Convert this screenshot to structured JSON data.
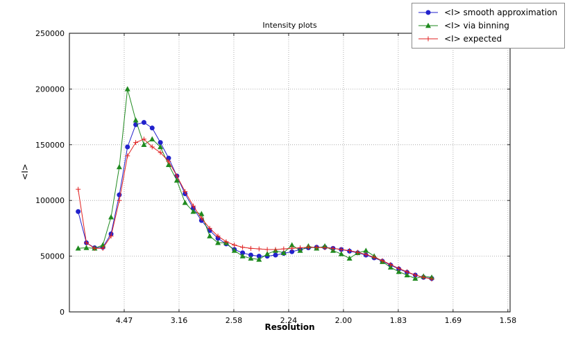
{
  "title": "Intensity plots",
  "xlabel": "Resolution",
  "ylabel": "<I>",
  "colors": {
    "smooth": "#2222cc",
    "binning": "#1f8a1f",
    "expected": "#e02020",
    "grid": "#9a9a9a",
    "frame": "#000000"
  },
  "legend": {
    "items": [
      {
        "label": "<I> smooth approximation",
        "color": "#2222cc",
        "marker": "circle"
      },
      {
        "label": "<I> via binning",
        "color": "#1f8a1f",
        "marker": "triangle"
      },
      {
        "label": "<I> expected",
        "color": "#e02020",
        "marker": "plus"
      }
    ]
  },
  "chart_data": {
    "type": "line",
    "title": "Intensity plots",
    "xlabel": "Resolution",
    "ylabel": "<I>",
    "x_axis": {
      "lim": [
        0,
        0.402
      ],
      "ticks": [
        0.05,
        0.1,
        0.15,
        0.2,
        0.25,
        0.3,
        0.35,
        0.4
      ],
      "tick_labels": [
        "4.47",
        "3.16",
        "2.58",
        "2.24",
        "2.00",
        "1.83",
        "1.69",
        "1.58"
      ]
    },
    "y_axis": {
      "lim": [
        0,
        250000
      ],
      "ticks": [
        0,
        50000,
        100000,
        150000,
        200000,
        250000
      ],
      "tick_labels": [
        "0",
        "50000",
        "100000",
        "150000",
        "200000",
        "250000"
      ]
    },
    "grid": "dotted",
    "legend_position": "upper right outside",
    "x": [
      0.008,
      0.0155,
      0.023,
      0.0305,
      0.038,
      0.0455,
      0.053,
      0.0605,
      0.068,
      0.0755,
      0.083,
      0.0905,
      0.098,
      0.1055,
      0.113,
      0.1205,
      0.128,
      0.1355,
      0.143,
      0.1505,
      0.158,
      0.1655,
      0.173,
      0.1805,
      0.188,
      0.1955,
      0.203,
      0.2105,
      0.218,
      0.2255,
      0.233,
      0.2405,
      0.248,
      0.2555,
      0.263,
      0.2705,
      0.278,
      0.2855,
      0.293,
      0.3005,
      0.308,
      0.3155,
      0.323,
      0.3305
    ],
    "series": [
      {
        "name": "<I> smooth approximation",
        "color": "#2222cc",
        "marker": "circle",
        "values": [
          90000,
          62000,
          57500,
          58000,
          70000,
          105000,
          148000,
          168000,
          170000,
          165000,
          152000,
          138000,
          122000,
          106000,
          93000,
          82000,
          73000,
          66000,
          61000,
          56000,
          53000,
          51000,
          50000,
          50000,
          51000,
          52500,
          54000,
          56000,
          57500,
          58000,
          58000,
          57000,
          56000,
          54500,
          53000,
          51000,
          48500,
          45500,
          42000,
          38500,
          35500,
          33000,
          31000,
          30000
        ]
      },
      {
        "name": "<I> via binning",
        "color": "#1f8a1f",
        "marker": "triangle",
        "values": [
          57000,
          57500,
          57000,
          60000,
          85000,
          130000,
          200000,
          172000,
          150000,
          155000,
          148000,
          132000,
          118000,
          98000,
          90000,
          88000,
          68000,
          62000,
          62000,
          55000,
          50000,
          48000,
          47000,
          52000,
          55000,
          53000,
          60000,
          55000,
          59000,
          57000,
          59000,
          55000,
          52000,
          48000,
          53000,
          55000,
          50000,
          45000,
          40000,
          36000,
          33000,
          30000,
          32000,
          31000
        ]
      },
      {
        "name": "<I> expected",
        "color": "#e02020",
        "marker": "plus",
        "values": [
          110000,
          62000,
          57000,
          57000,
          68000,
          100000,
          140000,
          152000,
          155000,
          148000,
          143000,
          135000,
          122000,
          108000,
          95000,
          84000,
          75000,
          68000,
          63000,
          60000,
          58000,
          57000,
          56500,
          56000,
          56000,
          56500,
          57000,
          57500,
          58000,
          58000,
          57500,
          57000,
          56000,
          55000,
          53500,
          51500,
          49000,
          46000,
          42500,
          39000,
          36000,
          33000,
          31000,
          29500
        ]
      }
    ]
  }
}
